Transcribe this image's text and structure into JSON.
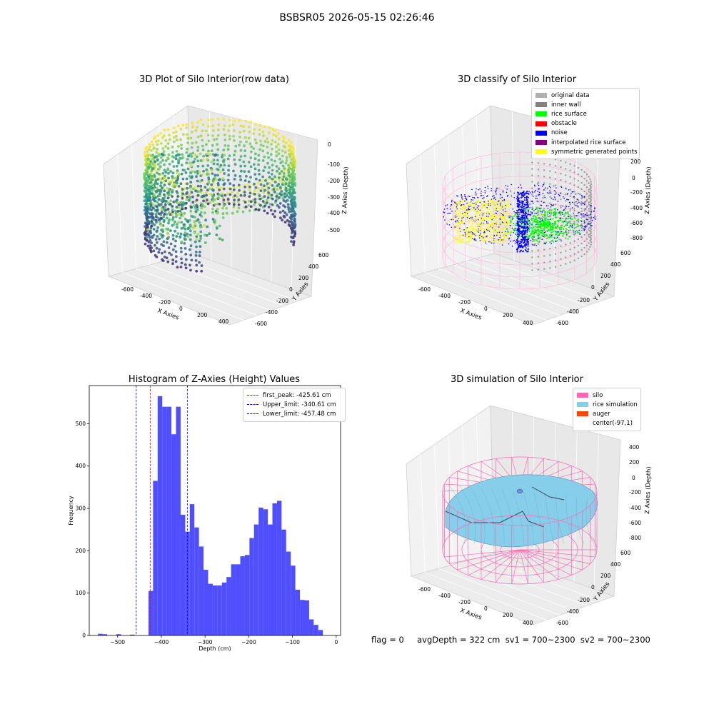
{
  "figure": {
    "suptitle": "BSBSR05 2026-05-15 02:26:46",
    "footer": "flag = 0     avgDepth = 322 cm  sv1 = 700~2300  sv2 = 700~2300"
  },
  "colors": {
    "silo": "#ff69b4",
    "rice_simulation": "#87ceeb",
    "auger": "#ff4500",
    "noise": "#0000ff",
    "rice_surface": "#00ff00",
    "symmetric": "#ffff00",
    "hist_bar": "#4b4bff"
  },
  "chart_data": [
    {
      "type": "scatter",
      "title": "3D Plot of Silo Interior(row data)",
      "xlabel": "X Axies",
      "ylabel": "Y Axies",
      "zlabel": "Z Axies (Depth)",
      "x_ticks": [
        "-600",
        "-400",
        "-200",
        "0",
        "200",
        "400"
      ],
      "y_ticks": [
        "-600",
        "-400",
        "-200",
        "0",
        "200",
        "400",
        "600"
      ],
      "z_ticks": [
        "0",
        "-100",
        "-200",
        "-300",
        "-400",
        "-500"
      ],
      "colormap": "viridis"
    },
    {
      "type": "scatter",
      "title": "3D classify of Silo Interior",
      "xlabel": "X Axies",
      "ylabel": "Y Axies",
      "zlabel": "Z Axies (Depth)",
      "x_ticks": [
        "-600",
        "-400",
        "-200",
        "0",
        "200",
        "400"
      ],
      "y_ticks": [
        "-600",
        "-400",
        "-200",
        "0",
        "200",
        "400",
        "600"
      ],
      "z_ticks": [
        "200",
        "0",
        "-200",
        "-400",
        "-600",
        "-800"
      ],
      "legend": [
        {
          "label": "original data",
          "color": "#b0b0b0"
        },
        {
          "label": "inner wall",
          "color": "#808080"
        },
        {
          "label": "rice surface",
          "color": "#00ff00"
        },
        {
          "label": "obstacle",
          "color": "#ff0000"
        },
        {
          "label": "noise",
          "color": "#0000ff"
        },
        {
          "label": "interpolated rice surface",
          "color": "#800080"
        },
        {
          "label": "symmetric generated points",
          "color": "#ffff00"
        }
      ]
    },
    {
      "type": "bar",
      "title": "Histogram of Z-Axies (Height) Values",
      "xlabel": "Depth (cm)",
      "ylabel": "Frequency",
      "xlim": [
        -565,
        10
      ],
      "ylim": [
        0,
        590
      ],
      "x_ticks": [
        -500,
        -400,
        -300,
        -200,
        -100,
        0
      ],
      "y_ticks": [
        0,
        100,
        200,
        300,
        400,
        500
      ],
      "bin_start": -545,
      "bin_width": 10.5,
      "values": [
        4,
        3,
        0,
        0,
        3,
        0,
        0,
        2,
        0,
        0,
        0,
        105,
        365,
        565,
        540,
        540,
        475,
        540,
        285,
        245,
        310,
        255,
        210,
        155,
        122,
        118,
        118,
        125,
        138,
        168,
        168,
        187,
        190,
        230,
        262,
        302,
        298,
        262,
        312,
        318,
        250,
        198,
        165,
        108,
        84,
        83,
        38,
        25,
        13
      ],
      "lines": [
        {
          "label": "first_peak: -425.61 cm",
          "x": -425.61,
          "color": "#ff0000"
        },
        {
          "label": "Upper_limit: -340.61 cm",
          "x": -340.61,
          "color": "#0000ff"
        },
        {
          "label": "Lower_limit: -457.48 cm",
          "x": -457.48,
          "color": "#0000ff"
        }
      ],
      "legend_position": "top-right"
    },
    {
      "type": "surface",
      "title": "3D simulation of Silo Interior",
      "xlabel": "X Axies",
      "ylabel": "Y Axies",
      "zlabel": "Z Axies (Depth)",
      "x_ticks": [
        "-600",
        "-400",
        "-200",
        "0",
        "200",
        "400"
      ],
      "y_ticks": [
        "-600",
        "-400",
        "-200",
        "0",
        "200",
        "400",
        "600"
      ],
      "z_ticks": [
        "400",
        "200",
        "0",
        "-200",
        "-400",
        "-600",
        "-800"
      ],
      "legend": [
        {
          "label": "silo",
          "color": "#ff69b4"
        },
        {
          "label": "rice simulation",
          "color": "#87ceeb"
        },
        {
          "label": "auger",
          "color": "#ff4500"
        },
        {
          "label": "center(-97,1)",
          "color": "#ffffff"
        }
      ]
    }
  ]
}
